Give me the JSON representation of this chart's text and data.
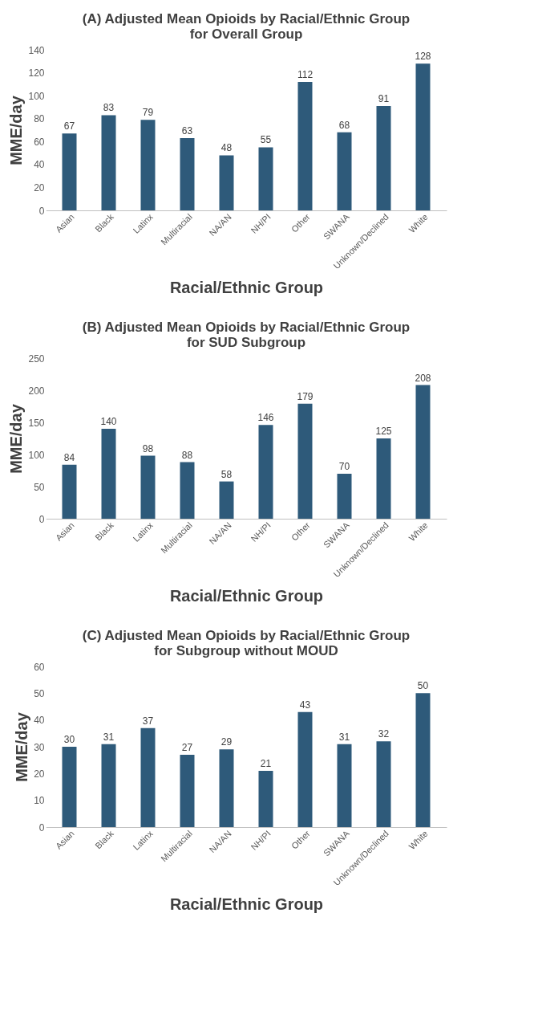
{
  "chart_data": [
    {
      "type": "bar",
      "title": "(A) Adjusted Mean Opioids by Racial/Ethnic Group for Overall Group",
      "xlabel": "Racial/Ethnic Group",
      "ylabel": "MME/day",
      "categories": [
        "Asian",
        "Black",
        "Latinx",
        "Multiracial",
        "NA/AN",
        "NH/PI",
        "Other",
        "SWANA",
        "Unknown/Declined",
        "White"
      ],
      "values": [
        67,
        83,
        79,
        63,
        48,
        55,
        112,
        68,
        91,
        128
      ],
      "color": "#2e5a7a",
      "ylim": [
        0,
        140
      ],
      "yticks": [
        0,
        20,
        40,
        60,
        80,
        100,
        120,
        140
      ],
      "data_labels": true,
      "grid": false
    },
    {
      "type": "bar",
      "title": "(B) Adjusted Mean Opioids by Racial/Ethnic Group for SUD Subgroup",
      "xlabel": "Racial/Ethnic Group",
      "ylabel": "MME/day",
      "categories": [
        "Asian",
        "Black",
        "Latinx",
        "Multiracial",
        "NA/AN",
        "NH/PI",
        "Other",
        "SWANA",
        "Unknown/Declined",
        "White"
      ],
      "values": [
        84,
        140,
        98,
        88,
        58,
        146,
        179,
        70,
        125,
        208
      ],
      "color": "#2e5a7a",
      "ylim": [
        0,
        250
      ],
      "yticks": [
        0,
        50,
        100,
        150,
        200,
        250
      ],
      "data_labels": true,
      "grid": false
    },
    {
      "type": "bar",
      "title": "(C) Adjusted Mean Opioids by Racial/Ethnic Group for Subgroup without MOUD",
      "xlabel": "Racial/Ethnic Group",
      "ylabel": "MME/day",
      "categories": [
        "Asian",
        "Black",
        "Latinx",
        "Multiracial",
        "NA/AN",
        "NH/PI",
        "Other",
        "SWANA",
        "Unknown/Declined",
        "White"
      ],
      "values": [
        30,
        31,
        37,
        27,
        29,
        21,
        43,
        31,
        32,
        50
      ],
      "color": "#2e5a7a",
      "ylim": [
        0,
        60
      ],
      "yticks": [
        0,
        10,
        20,
        30,
        40,
        50,
        60
      ],
      "data_labels": true,
      "grid": false
    }
  ]
}
